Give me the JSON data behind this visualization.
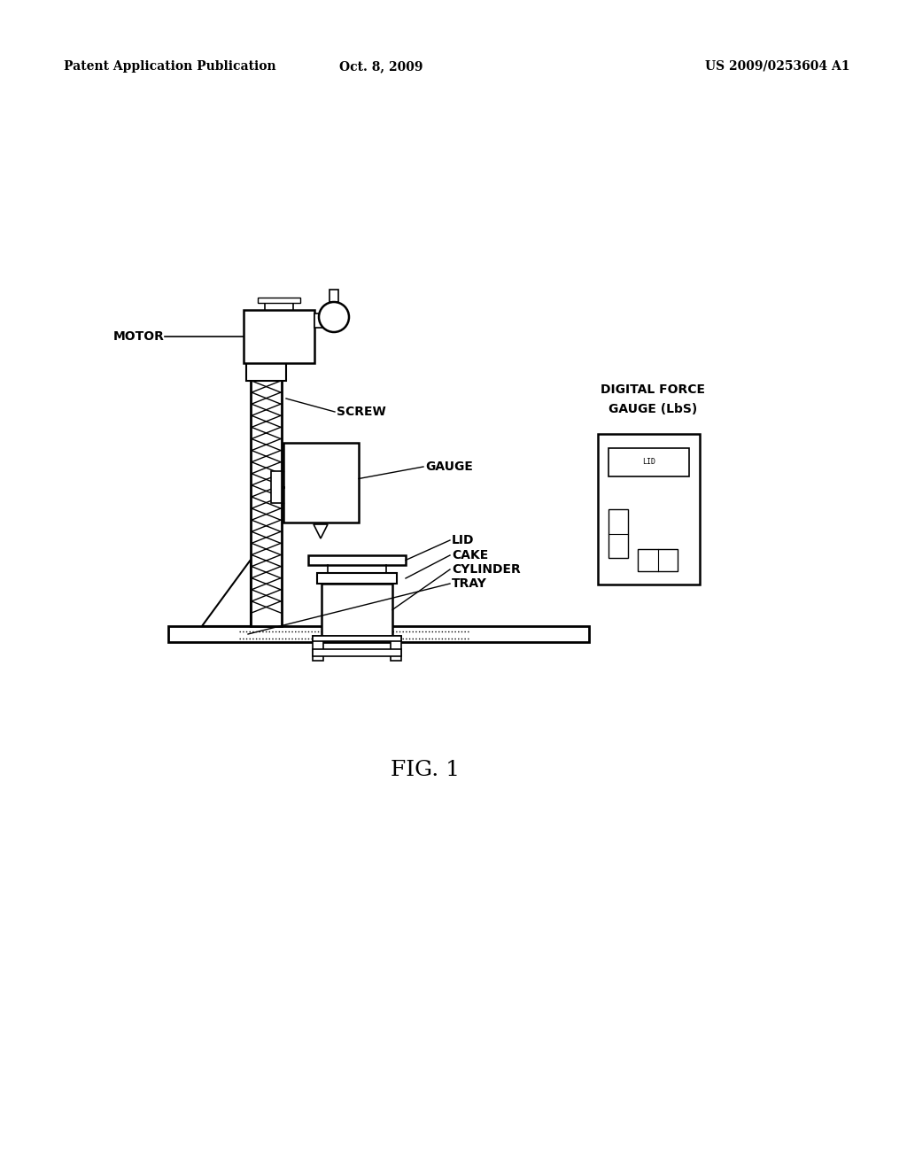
{
  "background_color": "#ffffff",
  "header_left": "Patent Application Publication",
  "header_center": "Oct. 8, 2009",
  "header_right": "US 2009/0253604 A1",
  "fig_label": "FIG. 1"
}
